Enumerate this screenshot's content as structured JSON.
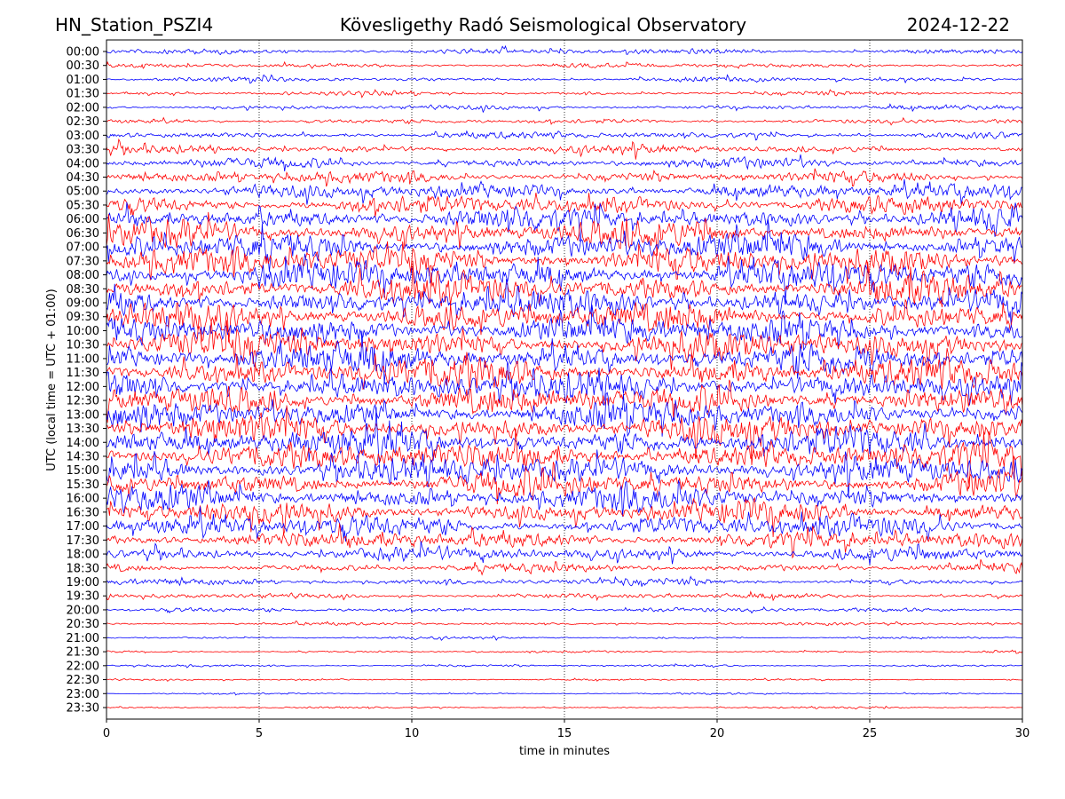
{
  "header": {
    "station": "HN_Station_PSZI4",
    "observatory": "Kövesligethy Radó Seismological Observatory",
    "date": "2024-12-22"
  },
  "chart_data": {
    "type": "line",
    "title": "Kövesligethy Radó Seismological Observatory",
    "xlabel": "time in minutes",
    "ylabel": "UTC (local time = UTC + 01:00)",
    "xlim": [
      0,
      30
    ],
    "x_ticks": [
      "0",
      "5",
      "10",
      "15",
      "20",
      "25",
      "30"
    ],
    "grid": "vertical dotted at x ticks",
    "row_labels": [
      "00:00",
      "00:30",
      "01:00",
      "01:30",
      "02:00",
      "02:30",
      "03:00",
      "03:30",
      "04:00",
      "04:30",
      "05:00",
      "05:30",
      "06:00",
      "06:30",
      "07:00",
      "07:30",
      "08:00",
      "08:30",
      "09:00",
      "09:30",
      "10:00",
      "10:30",
      "11:00",
      "11:30",
      "12:00",
      "12:30",
      "13:00",
      "13:30",
      "14:00",
      "14:30",
      "15:00",
      "15:30",
      "16:00",
      "16:30",
      "17:00",
      "17:30",
      "18:00",
      "18:30",
      "19:00",
      "19:30",
      "20:00",
      "20:30",
      "21:00",
      "21:30",
      "22:00",
      "22:30",
      "23:00",
      "23:30"
    ],
    "relative_amplitude": [
      0.5,
      0.4,
      0.4,
      0.35,
      0.4,
      0.4,
      0.6,
      0.7,
      0.9,
      1.0,
      1.3,
      1.6,
      2.0,
      2.2,
      2.4,
      2.5,
      2.5,
      2.5,
      2.5,
      2.6,
      2.6,
      2.6,
      2.6,
      2.6,
      2.6,
      2.6,
      2.5,
      2.5,
      2.5,
      2.5,
      2.4,
      2.3,
      2.2,
      2.0,
      1.8,
      1.5,
      1.2,
      0.8,
      0.6,
      0.45,
      0.35,
      0.25,
      0.2,
      0.2,
      0.2,
      0.15,
      0.15,
      0.15
    ],
    "trace_colors": [
      "#0000ff",
      "#ff0000"
    ]
  }
}
